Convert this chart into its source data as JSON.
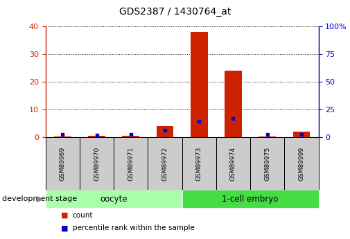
{
  "title": "GDS2387 / 1430764_at",
  "samples": [
    "GSM89969",
    "GSM89970",
    "GSM89971",
    "GSM89972",
    "GSM89973",
    "GSM89974",
    "GSM89975",
    "GSM89999"
  ],
  "count_values": [
    0.3,
    0.7,
    0.5,
    4.0,
    38.0,
    24.0,
    0.3,
    2.0
  ],
  "percentile_values": [
    2.5,
    2.0,
    2.5,
    6.5,
    14.5,
    17.0,
    2.5,
    3.0
  ],
  "groups": [
    {
      "label": "oocyte",
      "n": 4,
      "color": "#aaffaa"
    },
    {
      "label": "1-cell embryo",
      "n": 4,
      "color": "#44dd44"
    }
  ],
  "ylim_left": [
    0,
    40
  ],
  "ylim_right": [
    0,
    100
  ],
  "yticks_left": [
    0,
    10,
    20,
    30,
    40
  ],
  "yticks_right": [
    0,
    25,
    50,
    75,
    100
  ],
  "bar_color": "#CC2200",
  "dot_color": "#0000CC",
  "left_axis_color": "#CC2200",
  "right_axis_color": "#0000CC",
  "grid_color": "#000000",
  "xlabel_stage": "development stage",
  "legend_count": "count",
  "legend_percentile": "percentile rank within the sample"
}
